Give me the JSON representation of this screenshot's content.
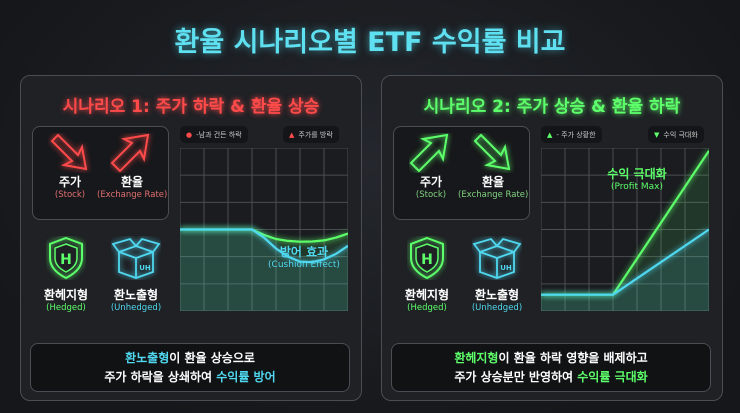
{
  "title": "환율 시나리오별 ETF 수익률 비교",
  "colors": {
    "red": "#ff4a4a",
    "green": "#5dff6a",
    "cyan": "#4fd8f0"
  },
  "scenario1": {
    "title": "시나리오 1: 주가 하락 & 환율 상승",
    "stock": {
      "ko": "주가",
      "en": "(Stock)",
      "icon": "arrow-down-right-icon"
    },
    "fx": {
      "ko": "환율",
      "en": "(Exchange Rate)",
      "icon": "arrow-up-right-icon"
    },
    "hedged": {
      "ko": "환헤지형",
      "en": "(Hedged)",
      "icon": "shield-h-icon"
    },
    "unhedged": {
      "ko": "환노출형",
      "en": "(Unhedged)",
      "icon": "box-uh-icon"
    },
    "legend": [
      "-남과 건든 하락",
      "주가를 방락"
    ],
    "annotation": {
      "ko": "방어 효과",
      "en": "(Cushion Effect)"
    },
    "note": {
      "l1a": "환노출형",
      "l1b": "이 환율 상승으로",
      "l2a": "주가 하락을 상쇄하여 ",
      "l2b": "수익률 방어"
    }
  },
  "scenario2": {
    "title": "시나리오 2: 주가 상승 & 환율 하락",
    "stock": {
      "ko": "주가",
      "en": "(Stock)",
      "icon": "arrow-up-right-icon"
    },
    "fx": {
      "ko": "환율",
      "en": "(Exchange Rate)",
      "icon": "arrow-down-right-icon"
    },
    "hedged": {
      "ko": "환헤지형",
      "en": "(Hedged)",
      "icon": "shield-h-icon"
    },
    "unhedged": {
      "ko": "환노출형",
      "en": "(Unhedged)",
      "icon": "box-uh-icon"
    },
    "legend": [
      "- 주가 상황한",
      "수익 극대화"
    ],
    "annotation": {
      "ko": "수익 극대화",
      "en": "(Profit Max)"
    },
    "note": {
      "l1a": "환헤지형",
      "l1b": "이 환율 하락 영향을 배제하고",
      "l2a": "주가 상승분만 반영하여 ",
      "l2b": "수익률 극대화"
    }
  },
  "chart_data": [
    {
      "type": "line",
      "grid": true,
      "xlim": [
        0,
        7
      ],
      "ylim": [
        0,
        6
      ],
      "series": [
        {
          "color": "#5dff6a",
          "x": [
            0,
            1,
            2,
            3,
            3.5,
            4,
            4.5,
            5,
            5.5,
            6,
            6.5,
            7
          ],
          "values": [
            3,
            3,
            3,
            3,
            2.8,
            2.65,
            2.58,
            2.55,
            2.56,
            2.6,
            2.7,
            2.85
          ]
        },
        {
          "color": "#4fd8f0",
          "x": [
            0,
            1,
            2,
            3,
            3.5,
            4,
            4.5,
            5,
            5.5,
            6,
            6.5,
            7
          ],
          "values": [
            3,
            3,
            3,
            3,
            2.7,
            2.3,
            2.0,
            1.82,
            1.8,
            1.9,
            2.1,
            2.4
          ]
        }
      ]
    },
    {
      "type": "line",
      "grid": true,
      "xlim": [
        0,
        7
      ],
      "ylim": [
        0,
        6
      ],
      "series": [
        {
          "color": "#5dff6a",
          "x": [
            0,
            3,
            7
          ],
          "values": [
            0.6,
            0.6,
            5.9
          ]
        },
        {
          "color": "#4fd8f0",
          "x": [
            0,
            3,
            7
          ],
          "values": [
            0.6,
            0.6,
            3.0
          ]
        }
      ]
    }
  ]
}
